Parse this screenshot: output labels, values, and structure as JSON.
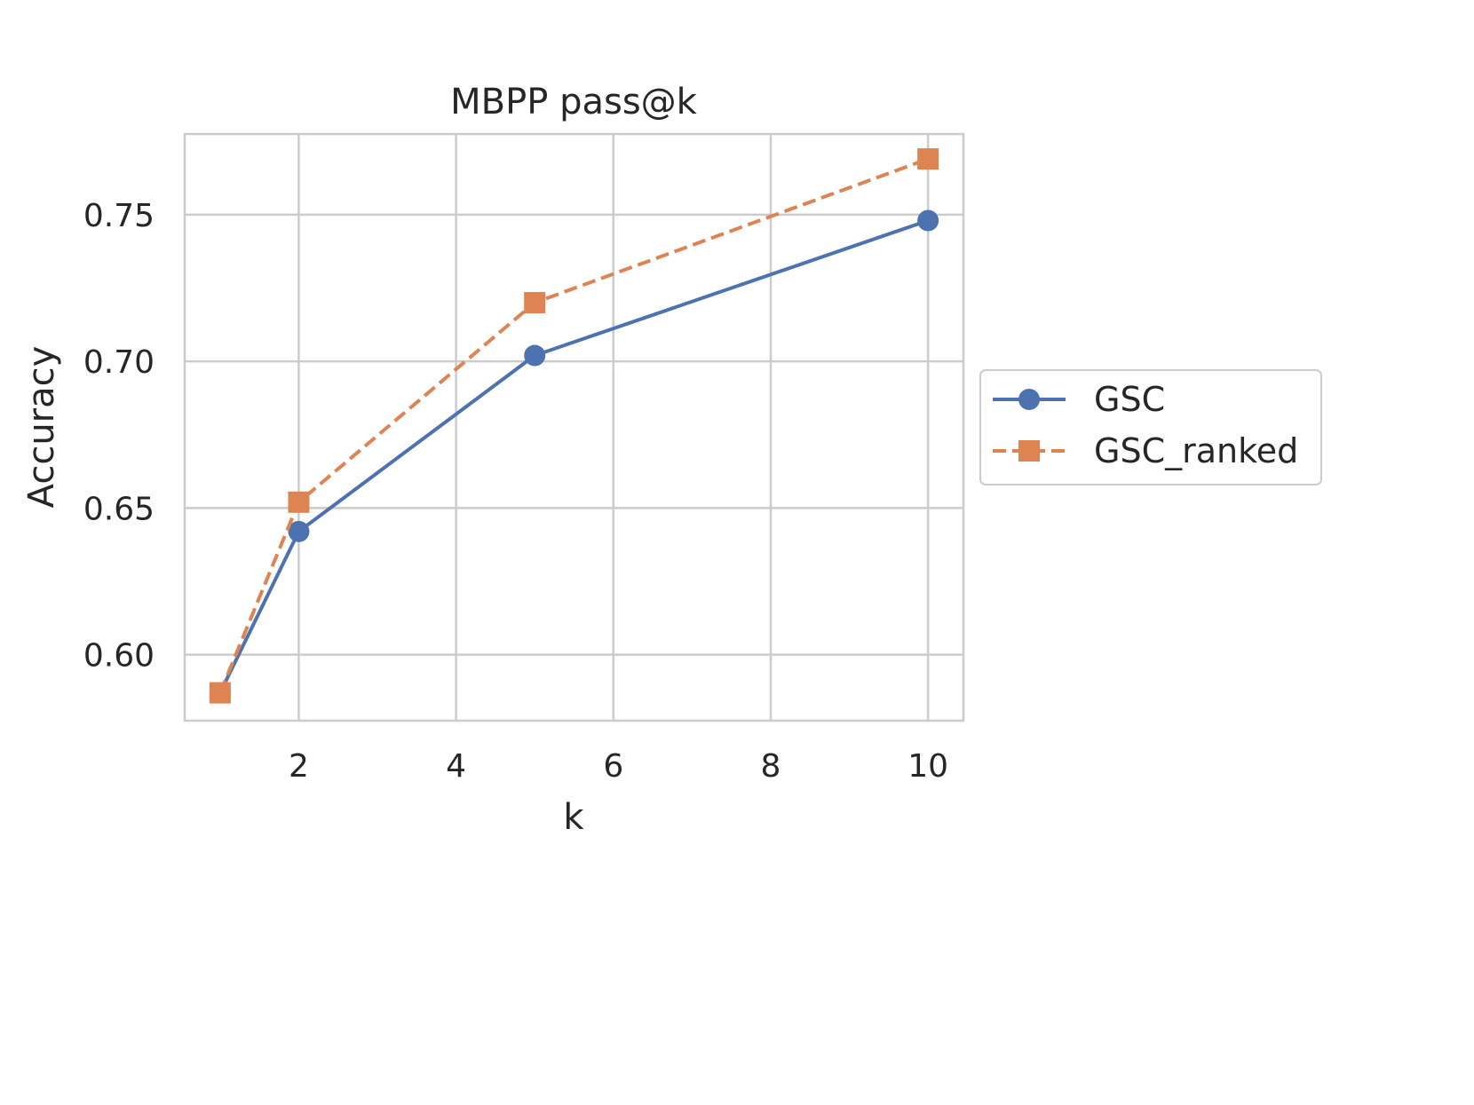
{
  "chart_data": {
    "type": "line",
    "title": "MBPP pass@k",
    "xlabel": "k",
    "ylabel": "Accuracy",
    "xlim": [
      0.55,
      10.45
    ],
    "ylim": [
      0.5775,
      0.7775
    ],
    "xticks": [
      2,
      4,
      6,
      8,
      10
    ],
    "yticks": [
      0.6,
      0.65,
      0.7,
      0.75
    ],
    "xtick_labels": [
      "2",
      "4",
      "6",
      "8",
      "10"
    ],
    "ytick_labels": [
      "0.60",
      "0.65",
      "0.70",
      "0.75"
    ],
    "grid": true,
    "legend_position": "outside-right",
    "x": [
      1,
      2,
      5,
      10
    ],
    "series": [
      {
        "name": "GSC",
        "values": [
          0.587,
          0.642,
          0.702,
          0.748
        ],
        "color": "#4c72b0",
        "marker": "circle",
        "line_style": "solid"
      },
      {
        "name": "GSC_ranked",
        "values": [
          0.587,
          0.652,
          0.72,
          0.769
        ],
        "color": "#dd8452",
        "marker": "square",
        "line_style": "dashed"
      }
    ]
  }
}
